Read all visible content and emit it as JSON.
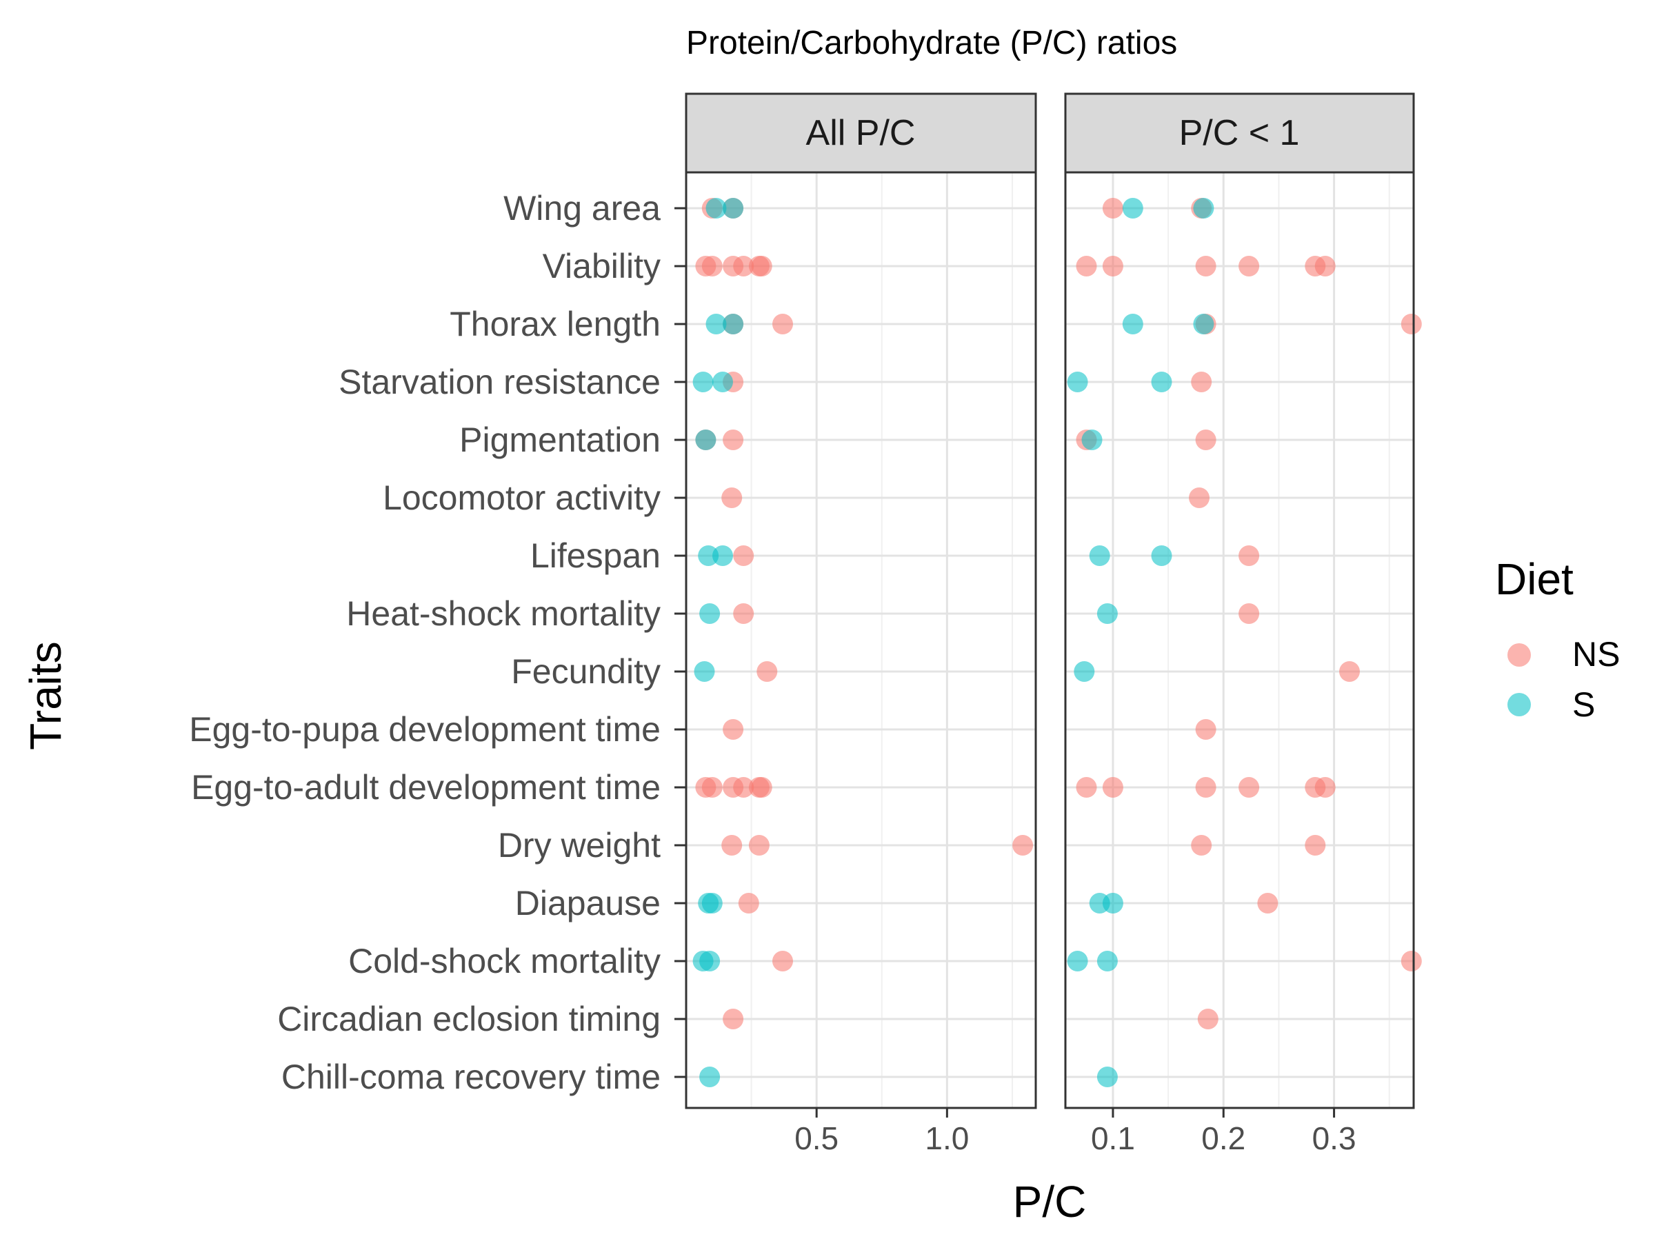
{
  "chart_data": {
    "type": "scatter",
    "title": "Protein/Carbohydrate (P/C) ratios",
    "xlabel": "P/C",
    "ylabel": "Traits",
    "grid": true,
    "legend": {
      "title": "Diet",
      "position": "right",
      "entries": [
        {
          "name": "NS",
          "color": "#F8766D"
        },
        {
          "name": "S",
          "color": "#00BFC4"
        }
      ]
    },
    "categories": [
      "Wing area",
      "Viability",
      "Thorax length",
      "Starvation resistance",
      "Pigmentation",
      "Locomotor activity",
      "Lifespan",
      "Heat-shock mortality",
      "Fecundity",
      "Egg-to-pupa development time",
      "Egg-to-adult development time",
      "Dry weight",
      "Diapause",
      "Cold-shock mortality",
      "Circadian eclosion timing",
      "Chill-coma recovery time"
    ],
    "panels": [
      {
        "label": "All P/C",
        "xlim": [
          0.0,
          1.34
        ],
        "xticks": [
          0.5,
          1.0
        ],
        "xtick_labels": [
          "0.5",
          "1.0"
        ],
        "xminor": [
          0.25,
          0.75,
          1.25
        ],
        "series": [
          {
            "name": "NS",
            "points": [
              [
                "Wing area",
                0.1
              ],
              [
                "Wing area",
                0.18
              ],
              [
                "Viability",
                0.075
              ],
              [
                "Viability",
                0.1
              ],
              [
                "Viability",
                0.18
              ],
              [
                "Viability",
                0.22
              ],
              [
                "Viability",
                0.28
              ],
              [
                "Viability",
                0.29
              ],
              [
                "Thorax length",
                0.18
              ],
              [
                "Thorax length",
                0.37
              ],
              [
                "Starvation resistance",
                0.18
              ],
              [
                "Pigmentation",
                0.075
              ],
              [
                "Pigmentation",
                0.18
              ],
              [
                "Locomotor activity",
                0.175
              ],
              [
                "Lifespan",
                0.22
              ],
              [
                "Heat-shock mortality",
                0.22
              ],
              [
                "Fecundity",
                0.31
              ],
              [
                "Egg-to-pupa development time",
                0.18
              ],
              [
                "Egg-to-adult development time",
                0.075
              ],
              [
                "Egg-to-adult development time",
                0.1
              ],
              [
                "Egg-to-adult development time",
                0.18
              ],
              [
                "Egg-to-adult development time",
                0.22
              ],
              [
                "Egg-to-adult development time",
                0.28
              ],
              [
                "Egg-to-adult development time",
                0.29
              ],
              [
                "Dry weight",
                0.175
              ],
              [
                "Dry weight",
                0.28
              ],
              [
                "Dry weight",
                1.29
              ],
              [
                "Diapause",
                0.24
              ],
              [
                "Cold-shock mortality",
                0.37
              ],
              [
                "Circadian eclosion timing",
                0.18
              ]
            ]
          },
          {
            "name": "S",
            "points": [
              [
                "Wing area",
                0.115
              ],
              [
                "Wing area",
                0.18
              ],
              [
                "Thorax length",
                0.115
              ],
              [
                "Thorax length",
                0.18
              ],
              [
                "Starvation resistance",
                0.065
              ],
              [
                "Starvation resistance",
                0.14
              ],
              [
                "Pigmentation",
                0.075
              ],
              [
                "Lifespan",
                0.085
              ],
              [
                "Lifespan",
                0.14
              ],
              [
                "Heat-shock mortality",
                0.09
              ],
              [
                "Fecundity",
                0.07
              ],
              [
                "Diapause",
                0.085
              ],
              [
                "Diapause",
                0.1
              ],
              [
                "Cold-shock mortality",
                0.065
              ],
              [
                "Cold-shock mortality",
                0.09
              ],
              [
                "Chill-coma recovery time",
                0.09
              ]
            ]
          }
        ]
      },
      {
        "label": "P/C < 1",
        "xlim": [
          0.057,
          0.372
        ],
        "xticks": [
          0.1,
          0.2,
          0.3
        ],
        "xtick_labels": [
          "0.1",
          "0.2",
          "0.3"
        ],
        "xminor": [
          0.15,
          0.25,
          0.35
        ],
        "series": [
          {
            "name": "NS",
            "points": [
              [
                "Wing area",
                0.1
              ],
              [
                "Wing area",
                0.18
              ],
              [
                "Viability",
                0.076
              ],
              [
                "Viability",
                0.1
              ],
              [
                "Viability",
                0.184
              ],
              [
                "Viability",
                0.223
              ],
              [
                "Viability",
                0.283
              ],
              [
                "Viability",
                0.292
              ],
              [
                "Thorax length",
                0.184
              ],
              [
                "Thorax length",
                0.37
              ],
              [
                "Starvation resistance",
                0.18
              ],
              [
                "Pigmentation",
                0.076
              ],
              [
                "Pigmentation",
                0.184
              ],
              [
                "Locomotor activity",
                0.178
              ],
              [
                "Lifespan",
                0.223
              ],
              [
                "Heat-shock mortality",
                0.223
              ],
              [
                "Fecundity",
                0.314
              ],
              [
                "Egg-to-pupa development time",
                0.184
              ],
              [
                "Egg-to-adult development time",
                0.076
              ],
              [
                "Egg-to-adult development time",
                0.1
              ],
              [
                "Egg-to-adult development time",
                0.184
              ],
              [
                "Egg-to-adult development time",
                0.223
              ],
              [
                "Egg-to-adult development time",
                0.283
              ],
              [
                "Egg-to-adult development time",
                0.292
              ],
              [
                "Dry weight",
                0.18
              ],
              [
                "Dry weight",
                0.283
              ],
              [
                "Diapause",
                0.24
              ],
              [
                "Cold-shock mortality",
                0.37
              ],
              [
                "Circadian eclosion timing",
                0.186
              ]
            ]
          },
          {
            "name": "S",
            "points": [
              [
                "Wing area",
                0.118
              ],
              [
                "Wing area",
                0.182
              ],
              [
                "Thorax length",
                0.118
              ],
              [
                "Thorax length",
                0.182
              ],
              [
                "Starvation resistance",
                0.068
              ],
              [
                "Starvation resistance",
                0.144
              ],
              [
                "Pigmentation",
                0.081
              ],
              [
                "Lifespan",
                0.088
              ],
              [
                "Lifespan",
                0.144
              ],
              [
                "Heat-shock mortality",
                0.095
              ],
              [
                "Fecundity",
                0.074
              ],
              [
                "Diapause",
                0.088
              ],
              [
                "Diapause",
                0.1
              ],
              [
                "Cold-shock mortality",
                0.068
              ],
              [
                "Cold-shock mortality",
                0.095
              ],
              [
                "Chill-coma recovery time",
                0.095
              ]
            ]
          }
        ]
      }
    ]
  }
}
